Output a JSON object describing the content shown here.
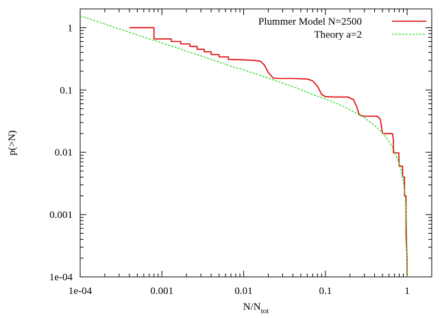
{
  "chart_data": {
    "type": "line",
    "title": "",
    "xlabel": {
      "main": "N/N",
      "sub": "tot"
    },
    "ylabel": "p(>N)",
    "xscale": "log",
    "yscale": "log",
    "xlim": [
      0.0001,
      2
    ],
    "ylim": [
      0.0001,
      2
    ],
    "grid": false,
    "legend_position": "top-right",
    "x_ticks": [
      {
        "value": 0.0001,
        "label": "1e-04"
      },
      {
        "value": 0.001,
        "label": "0.001"
      },
      {
        "value": 0.01,
        "label": "0.01"
      },
      {
        "value": 0.1,
        "label": "0.1"
      },
      {
        "value": 1,
        "label": "1"
      }
    ],
    "y_ticks": [
      {
        "value": 0.0001,
        "label": "1e-04"
      },
      {
        "value": 0.001,
        "label": "0.001"
      },
      {
        "value": 0.01,
        "label": "0.01"
      },
      {
        "value": 0.1,
        "label": "0.1"
      },
      {
        "value": 1,
        "label": "1"
      }
    ],
    "series": [
      {
        "name": "Plummer Model N=2500",
        "color": "#e00000",
        "style": "solid",
        "step": true,
        "x": [
          0.0004,
          0.0008,
          0.0008,
          0.0013,
          0.0013,
          0.0017,
          0.0017,
          0.0022,
          0.0022,
          0.0027,
          0.0027,
          0.0033,
          0.0033,
          0.004,
          0.004,
          0.005,
          0.005,
          0.0065,
          0.0065,
          0.009,
          0.013,
          0.016,
          0.018,
          0.02,
          0.023,
          0.028,
          0.04,
          0.06,
          0.07,
          0.08,
          0.09,
          0.1,
          0.13,
          0.19,
          0.22,
          0.24,
          0.26,
          0.29,
          0.43,
          0.47,
          0.5,
          0.66,
          0.68,
          0.68,
          0.79,
          0.8,
          0.88,
          0.88,
          0.93,
          0.93,
          0.97,
          0.97,
          0.999,
          1.0
        ],
        "y": [
          1.0,
          1.0,
          0.66,
          0.66,
          0.6,
          0.6,
          0.55,
          0.55,
          0.5,
          0.5,
          0.45,
          0.45,
          0.41,
          0.41,
          0.37,
          0.37,
          0.34,
          0.34,
          0.31,
          0.305,
          0.3,
          0.29,
          0.25,
          0.19,
          0.155,
          0.153,
          0.153,
          0.15,
          0.14,
          0.115,
          0.085,
          0.078,
          0.077,
          0.077,
          0.07,
          0.055,
          0.04,
          0.038,
          0.038,
          0.034,
          0.02,
          0.02,
          0.016,
          0.0098,
          0.0098,
          0.006,
          0.006,
          0.004,
          0.004,
          0.002,
          0.002,
          0.0005,
          0.0002,
          0.0001
        ]
      },
      {
        "name": "Theory a=2",
        "color": "#22dd22",
        "style": "dashed",
        "step": false,
        "x": [
          0.0001,
          0.0002,
          0.0004,
          0.0007,
          0.001,
          0.002,
          0.004,
          0.007,
          0.01,
          0.02,
          0.04,
          0.07,
          0.1,
          0.15,
          0.2,
          0.3,
          0.4,
          0.5,
          0.6,
          0.7,
          0.8,
          0.85,
          0.9,
          0.93,
          0.95,
          0.97,
          0.98,
          0.99,
          0.995,
          0.998,
          0.999
        ],
        "y": [
          1.55,
          1.14,
          0.84,
          0.66,
          0.57,
          0.42,
          0.31,
          0.24,
          0.21,
          0.155,
          0.113,
          0.085,
          0.072,
          0.058,
          0.048,
          0.036,
          0.027,
          0.0205,
          0.015,
          0.0105,
          0.0066,
          0.005,
          0.0034,
          0.0025,
          0.0019,
          0.0012,
          0.00085,
          0.00048,
          0.00028,
          0.00015,
          0.0001
        ]
      }
    ]
  }
}
